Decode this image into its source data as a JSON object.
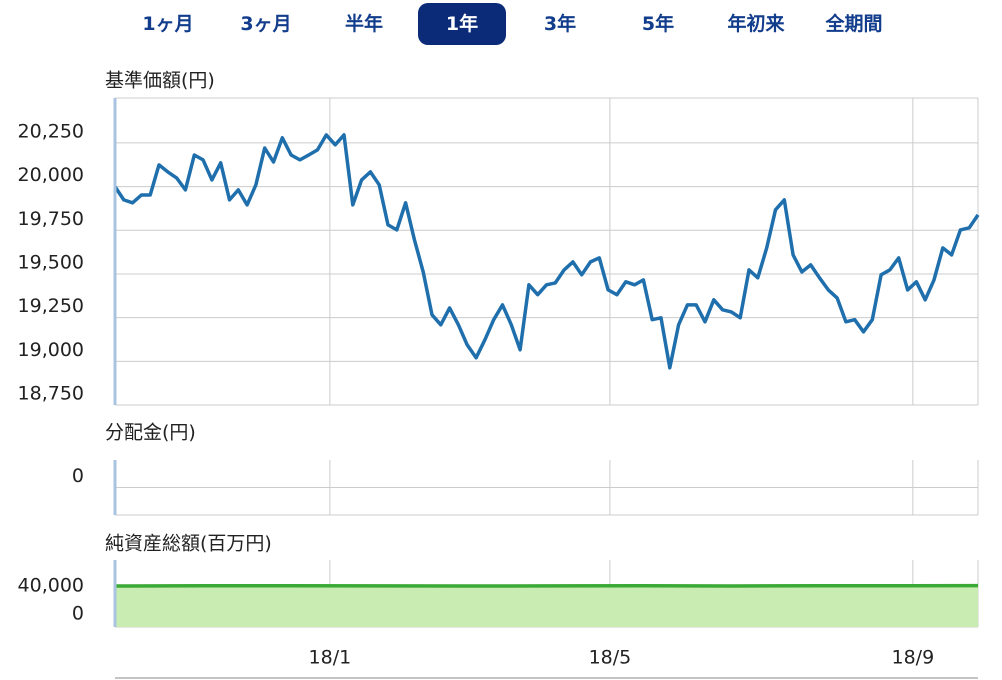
{
  "tabs": {
    "items": [
      "1ヶ月",
      "3ヶ月",
      "半年",
      "1年",
      "3年",
      "5年",
      "年初来",
      "全期間"
    ],
    "active": 3
  },
  "chart_data": [
    {
      "type": "line",
      "title": "基準価額(円)",
      "xlim": [
        0,
        98
      ],
      "xticks": [
        24.4,
        56.2,
        90.6
      ],
      "ylim": [
        18750,
        20507
      ],
      "yticks": [
        {
          "value": 18750,
          "label": "18,750"
        },
        {
          "value": 19000,
          "label": "19,000"
        },
        {
          "value": 19250,
          "label": "19,250"
        },
        {
          "value": 19500,
          "label": "19,500"
        },
        {
          "value": 19750,
          "label": "19,750"
        },
        {
          "value": 20000,
          "label": "20,000"
        },
        {
          "value": 20250,
          "label": "20,250"
        }
      ],
      "grid": true,
      "series": [
        {
          "color": "#1f6fad",
          "values": [
            20000,
            19924,
            19907,
            19952,
            19952,
            20124,
            20084,
            20050,
            19981,
            20181,
            20153,
            20038,
            20136,
            19924,
            19981,
            19895,
            20010,
            20221,
            20141,
            20279,
            20181,
            20153,
            20181,
            20210,
            20296,
            20239,
            20296,
            19895,
            20038,
            20084,
            20010,
            19781,
            19752,
            19907,
            19696,
            19512,
            19266,
            19209,
            19306,
            19209,
            19094,
            19020,
            19123,
            19238,
            19323,
            19209,
            19066,
            19438,
            19381,
            19438,
            19449,
            19523,
            19569,
            19495,
            19569,
            19592,
            19409,
            19381,
            19455,
            19438,
            19466,
            19238,
            19249,
            18963,
            19209,
            19323,
            19323,
            19226,
            19352,
            19295,
            19283,
            19249,
            19523,
            19478,
            19649,
            19867,
            19924,
            19609,
            19512,
            19552,
            19478,
            19409,
            19363,
            19226,
            19238,
            19169,
            19238,
            19495,
            19523,
            19592,
            19409,
            19455,
            19352,
            19466,
            19649,
            19609,
            19752,
            19764,
            19838
          ]
        }
      ]
    },
    {
      "type": "line",
      "title": "分配金(円)",
      "xlim": [
        0,
        98
      ],
      "xticks": [
        24.4,
        56.2,
        90.6
      ],
      "ylim": [
        -1,
        1
      ],
      "yticks": [
        0
      ],
      "grid": true,
      "series": []
    },
    {
      "type": "area",
      "title": "純資産総額(百万円)",
      "xlim": [
        0,
        98
      ],
      "xticks": [
        {
          "value": 24.4,
          "label": "18/1"
        },
        {
          "value": 56.2,
          "label": "18/5"
        },
        {
          "value": 90.6,
          "label": "18/9"
        }
      ],
      "ylim": [
        -18600,
        77100
      ],
      "yticks": [
        0,
        {
          "value": 40000,
          "label": "40,000"
        }
      ],
      "grid": true,
      "series": [
        {
          "color": "#3aa935",
          "fill": "#c9ecb3",
          "x": [
            0,
            10,
            20,
            30,
            40,
            50,
            60,
            70,
            80,
            90,
            98
          ],
          "values": [
            40000,
            40200,
            40300,
            40100,
            39900,
            40100,
            40200,
            40000,
            40400,
            40300,
            40600
          ]
        }
      ]
    }
  ]
}
